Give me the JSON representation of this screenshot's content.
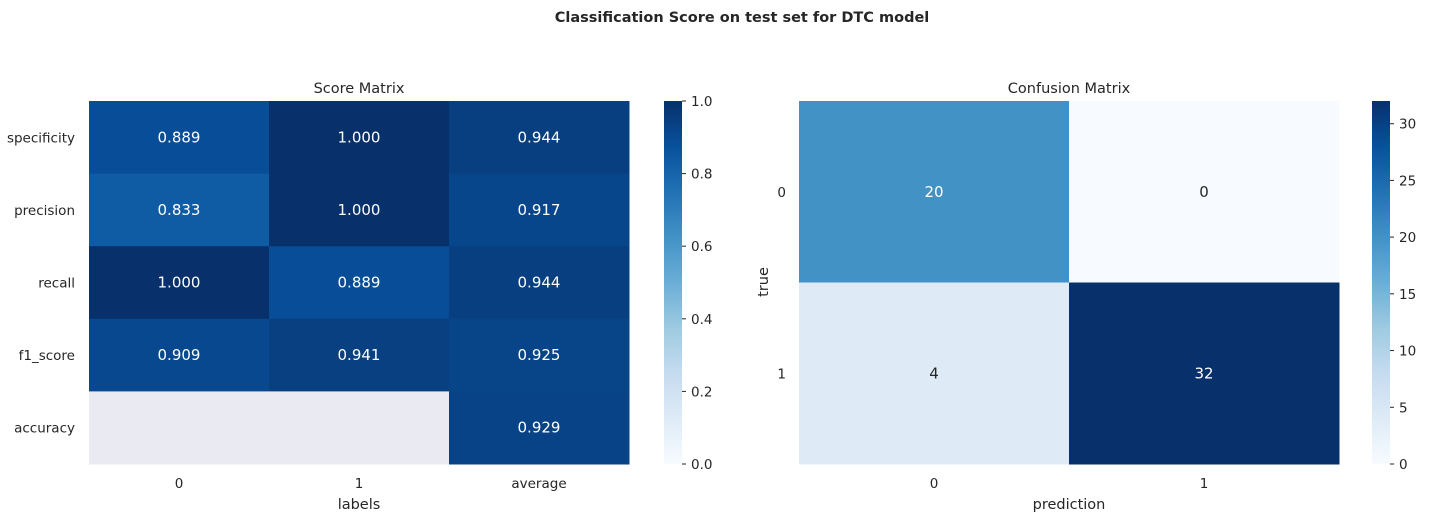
{
  "suptitle": "Classification Score on test set for DTC model",
  "chart_data": [
    {
      "type": "heatmap",
      "title": "Score Matrix",
      "xlabel": "labels",
      "ylabel": "",
      "x_categories": [
        "0",
        "1",
        "average"
      ],
      "y_categories": [
        "specificity",
        "precision",
        "recall",
        "f1_score",
        "accuracy"
      ],
      "values": [
        [
          0.889,
          1.0,
          0.944
        ],
        [
          0.833,
          1.0,
          0.917
        ],
        [
          1.0,
          0.889,
          0.944
        ],
        [
          0.909,
          0.941,
          0.925
        ],
        [
          null,
          null,
          0.929
        ]
      ],
      "annotations": [
        [
          "0.889",
          "1.000",
          "0.944"
        ],
        [
          "0.833",
          "1.000",
          "0.917"
        ],
        [
          "1.000",
          "0.889",
          "0.944"
        ],
        [
          "0.909",
          "0.941",
          "0.925"
        ],
        [
          "",
          "",
          "0.929"
        ]
      ],
      "colormap": "Blues",
      "vmin": 0,
      "vmax": 1,
      "colorbar_ticks": [
        "0.0",
        "0.2",
        "0.4",
        "0.6",
        "0.8",
        "1.0"
      ],
      "missing_color": "#eaeaf2"
    },
    {
      "type": "heatmap",
      "title": "Confusion Matrix",
      "xlabel": "prediction",
      "ylabel": "true",
      "x_categories": [
        "0",
        "1"
      ],
      "y_categories": [
        "0",
        "1"
      ],
      "values": [
        [
          20,
          0
        ],
        [
          4,
          32
        ]
      ],
      "annotations": [
        [
          "20",
          "0"
        ],
        [
          "4",
          "32"
        ]
      ],
      "colormap": "Blues",
      "vmin": 0,
      "vmax": 32,
      "colorbar_ticks": [
        "0",
        "5",
        "10",
        "15",
        "20",
        "25",
        "30"
      ]
    }
  ]
}
